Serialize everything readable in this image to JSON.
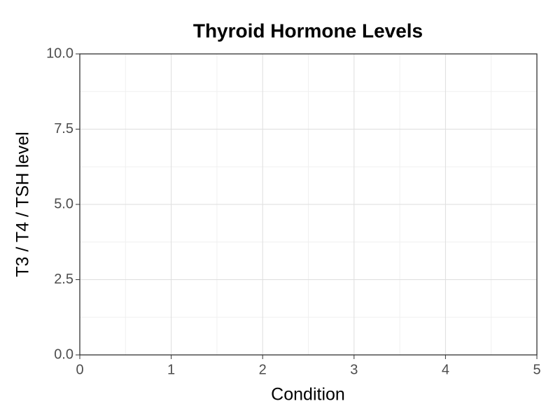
{
  "chart_data": {
    "type": "line",
    "title": "Thyroid Hormone Levels",
    "x_label": "Condition",
    "y_label": "T3 / T4 / TSH level",
    "series": [],
    "xlim": [
      0,
      5
    ],
    "xticks": [
      0,
      1,
      2,
      3,
      4,
      5
    ],
    "ylim": [
      0,
      10
    ],
    "yticks": [
      {
        "value": 0,
        "label": "0.0"
      },
      {
        "value": 2.5,
        "label": "2.5"
      },
      {
        "value": 5,
        "label": "5.0"
      },
      {
        "value": 7.5,
        "label": "7.5"
      },
      {
        "value": 10,
        "label": "10.0"
      }
    ],
    "grid": true
  }
}
